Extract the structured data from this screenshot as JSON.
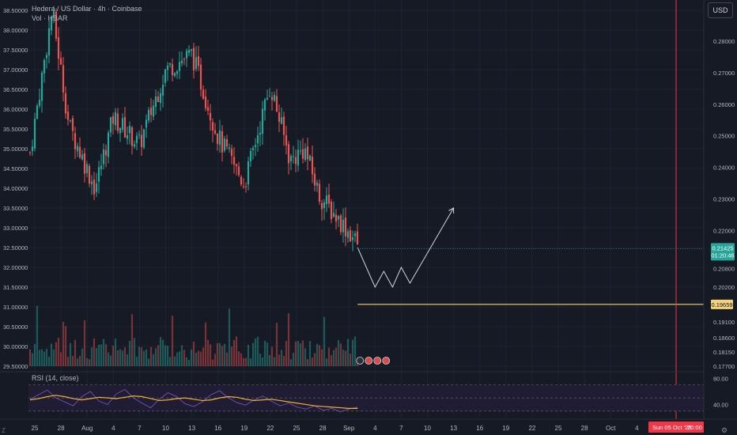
{
  "header": {
    "symbol_line": "Hedera / US Dollar · 4h · Coinbase",
    "volume_line": "Vol · HBAR",
    "currency_button": "USD"
  },
  "rsi": {
    "label": "RSI (14, close)"
  },
  "bottom_left_label": "Z",
  "corner_icon": "settings-icon",
  "colors": {
    "background": "#161a25",
    "up": "#26a69a",
    "down": "#ef5350",
    "level_line": "#f5d27a",
    "red_marker": "#f23645",
    "rsi_line": "#7e57c2",
    "rsi_ma": "#f0b232",
    "rsi_band": "#1f1c33"
  },
  "chart_data": [
    {
      "type": "candlestick",
      "title": "Hedera / US Dollar · 4h · Coinbase",
      "left_axis_ticks": [
        "38.50000",
        "38.00000",
        "37.50000",
        "37.00000",
        "36.50000",
        "36.00000",
        "35.50000",
        "35.00000",
        "34.50000",
        "34.00000",
        "33.50000",
        "33.00000",
        "32.50000",
        "32.00000",
        "31.50000",
        "31.00000",
        "30.50000",
        "30.00000",
        "29.50000"
      ],
      "left_ylim": [
        29.5,
        38.5
      ],
      "right_axis_ticks": [
        "0.28000",
        "0.27000",
        "0.26000",
        "0.25000",
        "0.24000",
        "0.23000",
        "0.22000",
        "0.20800",
        "0.20200",
        "0.19100",
        "0.18600",
        "0.18150",
        "0.17700"
      ],
      "right_ylim": [
        0.177,
        0.28
      ],
      "x_ticks": [
        "25",
        "28",
        "Aug",
        "4",
        "7",
        "10",
        "13",
        "16",
        "19",
        "22",
        "25",
        "28",
        "Sep",
        "4",
        "7",
        "10",
        "13",
        "16",
        "19",
        "22",
        "25",
        "28",
        "Oct",
        "4"
      ],
      "price_path_left_axis": [
        {
          "x": "25",
          "y": 34.9
        },
        {
          "x": "27",
          "y": 38.5
        },
        {
          "x": "29",
          "y": 35.6
        },
        {
          "x": "Aug",
          "y": 34.0
        },
        {
          "x": "4",
          "y": 35.8
        },
        {
          "x": "7",
          "y": 35.1
        },
        {
          "x": "10",
          "y": 37.0
        },
        {
          "x": "13",
          "y": 37.4
        },
        {
          "x": "16",
          "y": 35.3
        },
        {
          "x": "19",
          "y": 34.1
        },
        {
          "x": "22",
          "y": 36.6
        },
        {
          "x": "25",
          "y": 34.7
        },
        {
          "x": "26",
          "y": 35.0
        },
        {
          "x": "28",
          "y": 33.8
        },
        {
          "x": "Sep",
          "y": 32.9
        },
        {
          "x": "Sep 2",
          "y": 32.6
        }
      ],
      "projection_left_axis": [
        {
          "x": "Sep 2",
          "y": 32.5
        },
        {
          "x": "Sep 4",
          "y": 31.5
        },
        {
          "x": "Sep 5",
          "y": 31.9
        },
        {
          "x": "Sep 6",
          "y": 31.5
        },
        {
          "x": "Sep 7",
          "y": 32.0
        },
        {
          "x": "Sep 8",
          "y": 31.6
        },
        {
          "x": "Sep 13",
          "y": 33.5
        }
      ],
      "last_price": {
        "value": "0.21425",
        "timer": "01:20:46"
      },
      "level": {
        "value": "0.19659"
      },
      "red_marker": {
        "label": "Sun 05 Oct '25",
        "time": "20:00"
      },
      "grid": true
    },
    {
      "type": "line",
      "title": "RSI (14, close)",
      "ylim": [
        20,
        90
      ],
      "y_ticks": [
        "80.00",
        "40.00"
      ],
      "band": [
        30,
        70
      ],
      "series": [
        {
          "name": "RSI",
          "values": [
            48,
            55,
            62,
            50,
            44,
            38,
            52,
            60,
            45,
            40,
            56,
            63,
            50,
            42,
            35,
            48,
            58,
            52,
            41,
            37,
            44,
            55,
            61,
            50,
            43,
            39,
            47,
            53,
            45,
            38,
            42,
            36,
            33,
            38,
            31,
            34,
            29,
            33,
            36
          ]
        },
        {
          "name": "RSI-based MA",
          "values": [
            47,
            49,
            52,
            54,
            52,
            49,
            47,
            49,
            51,
            50,
            49,
            51,
            53,
            52,
            49,
            46,
            47,
            49,
            50,
            48,
            46,
            47,
            50,
            52,
            51,
            48,
            46,
            47,
            48,
            46,
            44,
            42,
            40,
            38,
            37,
            36,
            35,
            34,
            34
          ]
        }
      ]
    }
  ]
}
